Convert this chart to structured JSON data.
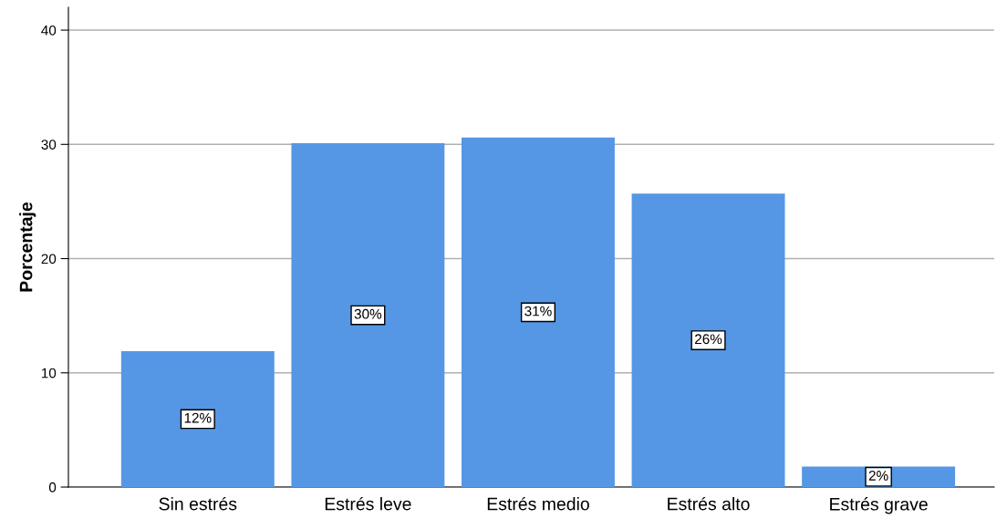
{
  "chart_data": {
    "type": "bar",
    "ylabel": "Porcentaje",
    "categories": [
      "Sin estrés",
      "Estrés leve",
      "Estrés medio",
      "Estrés alto",
      "Estrés grave"
    ],
    "values": [
      11.9,
      30.1,
      30.6,
      25.7,
      1.8
    ],
    "value_labels": [
      "12%",
      "30%",
      "31%",
      "26%",
      "2%"
    ],
    "color": "#5597e4",
    "ylim": [
      0,
      42
    ],
    "yticks": [
      0,
      10,
      20,
      30,
      40
    ],
    "grid": "y"
  }
}
